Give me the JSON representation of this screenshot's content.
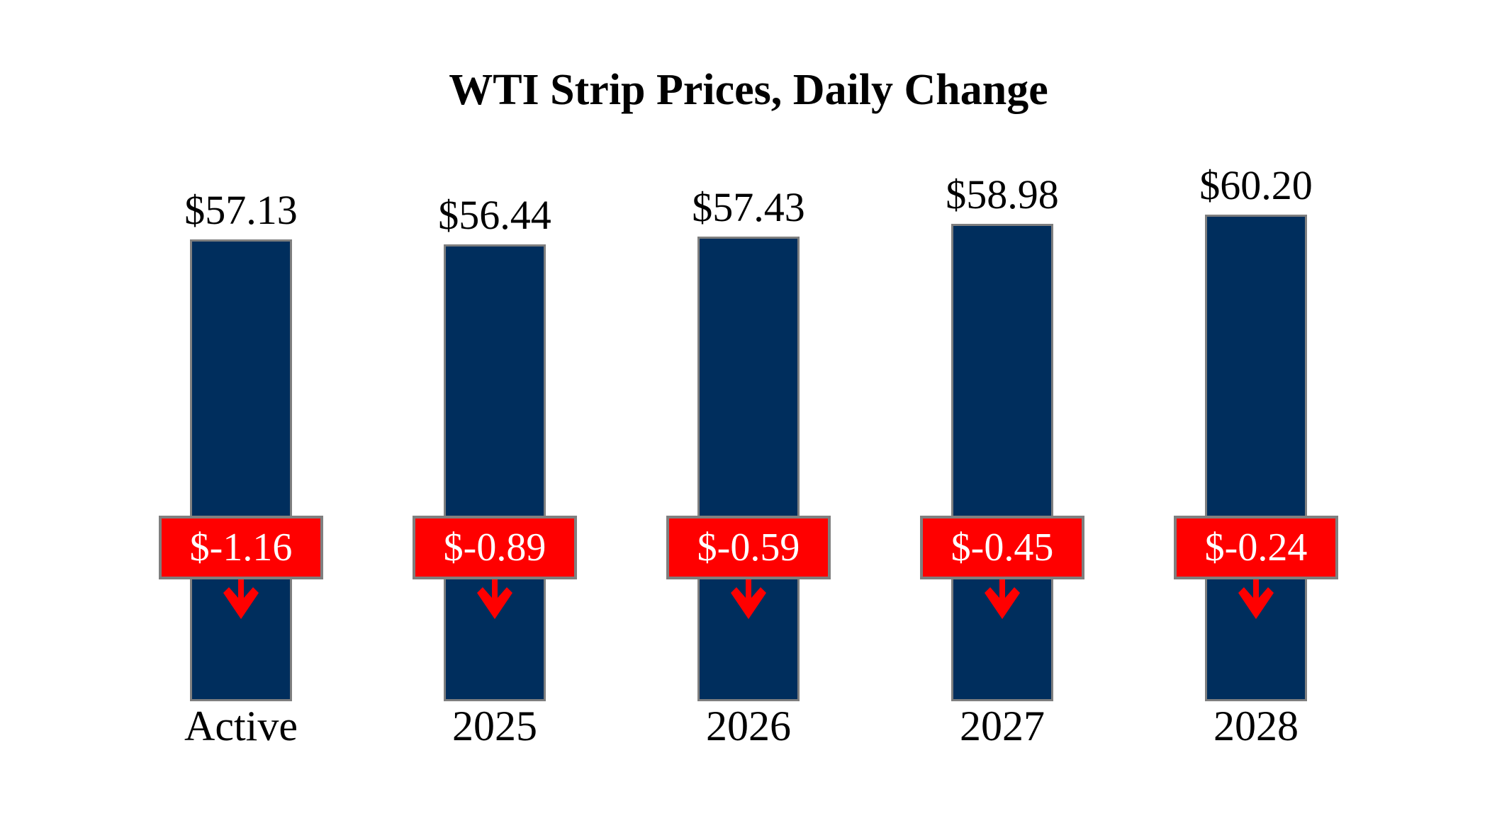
{
  "title": "WTI Strip Prices, Daily Change",
  "colors": {
    "bar_fill": "#002e5d",
    "bar_border": "#7f7f7f",
    "change_fill": "#ff0000",
    "change_border": "#7f7f7f",
    "change_text": "#ffffff",
    "label_text": "#000000",
    "background": "#ffffff"
  },
  "chart_data": {
    "type": "bar",
    "title": "WTI Strip Prices, Daily Change",
    "categories": [
      "Active",
      "2025",
      "2026",
      "2027",
      "2028"
    ],
    "series": [
      {
        "name": "Strip Price",
        "values": [
          57.13,
          56.44,
          57.43,
          58.98,
          60.2
        ]
      },
      {
        "name": "Daily Change",
        "values": [
          -1.16,
          -0.89,
          -0.59,
          -0.45,
          -0.24
        ]
      }
    ],
    "bars": [
      {
        "category": "Active",
        "price": 57.13,
        "price_label": "$57.13",
        "change": -1.16,
        "change_label": "$-1.16",
        "direction": "down"
      },
      {
        "category": "2025",
        "price": 56.44,
        "price_label": "$56.44",
        "change": -0.89,
        "change_label": "$-0.89",
        "direction": "down"
      },
      {
        "category": "2026",
        "price": 57.43,
        "price_label": "$57.43",
        "change": -0.59,
        "change_label": "$-0.59",
        "direction": "down"
      },
      {
        "category": "2027",
        "price": 58.98,
        "price_label": "$58.98",
        "change": -0.45,
        "change_label": "$-0.45",
        "direction": "down"
      },
      {
        "category": "2028",
        "price": 60.2,
        "price_label": "$60.20",
        "change": -0.24,
        "change_label": "$-0.24",
        "direction": "down"
      }
    ],
    "grid": false,
    "legend": false,
    "baseline": 0
  }
}
